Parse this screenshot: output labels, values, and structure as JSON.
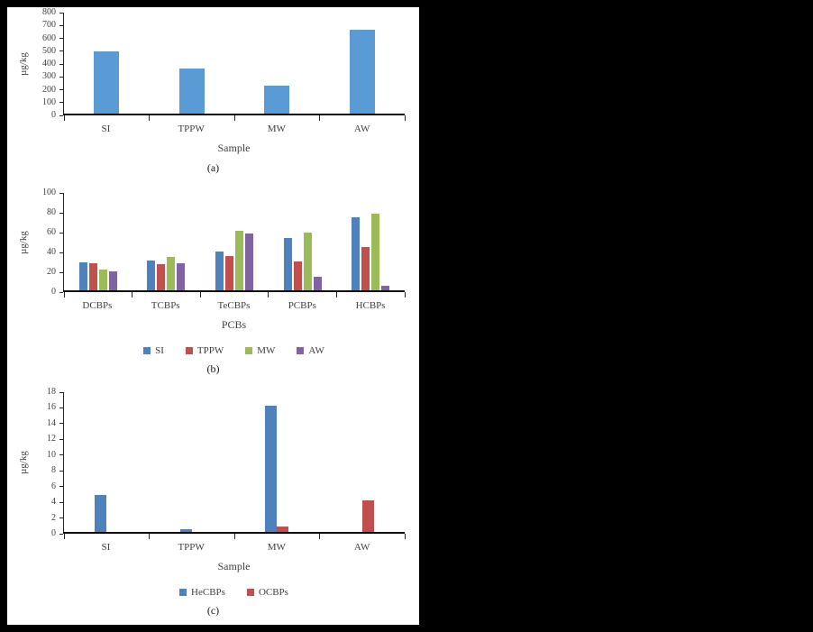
{
  "chart_data": [
    {
      "id": "a",
      "type": "bar",
      "caption": "(a)",
      "ylabel": "µg/kg",
      "xlabel": "Sample",
      "categories": [
        "SI",
        "TPPW",
        "MW",
        "AW"
      ],
      "ylim": [
        0,
        800
      ],
      "ytick": 100,
      "grid": false,
      "legend": false,
      "legend_position": "none",
      "series": [
        {
          "name": "",
          "color": "#5B9BD5",
          "values": [
            490,
            360,
            220,
            665
          ]
        }
      ]
    },
    {
      "id": "b",
      "type": "bar",
      "caption": "(b)",
      "ylabel": "µg/kg",
      "xlabel": "PCBs",
      "categories": [
        "DCBPs",
        "TCBPs",
        "TeCBPs",
        "PCBPs",
        "HCBPs"
      ],
      "ylim": [
        0,
        100
      ],
      "ytick": 20,
      "grid": false,
      "legend": true,
      "legend_position": "bottom",
      "series": [
        {
          "name": "SI",
          "color": "#4F81BD",
          "values": [
            29,
            31,
            40,
            54,
            75
          ]
        },
        {
          "name": "TPPW",
          "color": "#C0504D",
          "values": [
            28,
            27,
            35,
            30,
            44
          ]
        },
        {
          "name": "MW",
          "color": "#9BBB59",
          "values": [
            21,
            34,
            61,
            59,
            79
          ]
        },
        {
          "name": "AW",
          "color": "#8064A2",
          "values": [
            19,
            28,
            58,
            14,
            5
          ]
        }
      ]
    },
    {
      "id": "c",
      "type": "bar",
      "caption": "(c)",
      "ylabel": "µg/kg",
      "xlabel": "Sample",
      "categories": [
        "SI",
        "TPPW",
        "MW",
        "AW"
      ],
      "ylim": [
        0,
        18
      ],
      "ytick": 2,
      "grid": false,
      "legend": true,
      "legend_position": "bottom",
      "series": [
        {
          "name": "HeCBPs",
          "color": "#4F81BD",
          "values": [
            4.8,
            0.3,
            16.3,
            0
          ]
        },
        {
          "name": "OCBPs",
          "color": "#C0504D",
          "values": [
            0,
            0,
            0.7,
            4.1
          ]
        }
      ]
    }
  ]
}
